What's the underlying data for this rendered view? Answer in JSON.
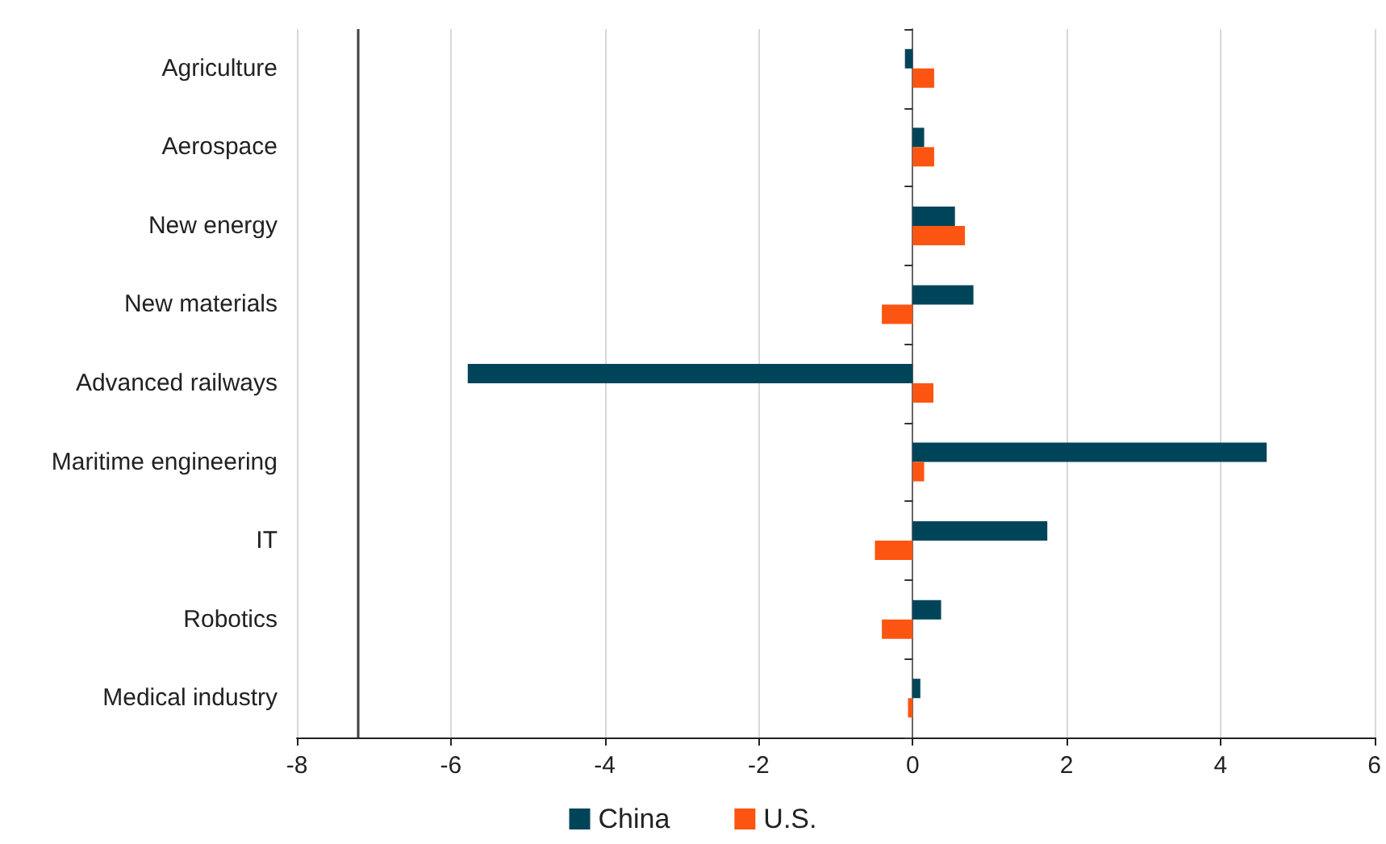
{
  "chart_data": {
    "type": "bar",
    "orientation": "horizontal",
    "categories": [
      "Agriculture",
      "Aerospace",
      "New energy",
      "New materials",
      "Advanced railways",
      "Maritime engineering",
      "IT",
      "Robotics",
      "Medical industry"
    ],
    "series": [
      {
        "name": "China",
        "color": "#004459",
        "values": [
          -0.1,
          0.15,
          0.55,
          0.79,
          -5.78,
          4.6,
          1.75,
          0.37,
          0.1
        ]
      },
      {
        "name": "U.S.",
        "color": "#fc5512",
        "values": [
          0.28,
          0.28,
          0.68,
          -0.4,
          0.27,
          0.15,
          -0.49,
          -0.4,
          -0.06
        ]
      }
    ],
    "xlim": [
      -8,
      6
    ],
    "xticks": [
      -8,
      -6,
      -4,
      -2,
      0,
      2,
      4,
      6
    ],
    "ref_lines": [
      {
        "axis": "x",
        "value": -7.2,
        "color": "#404040"
      }
    ],
    "grid": "x",
    "legend": "bottom"
  }
}
